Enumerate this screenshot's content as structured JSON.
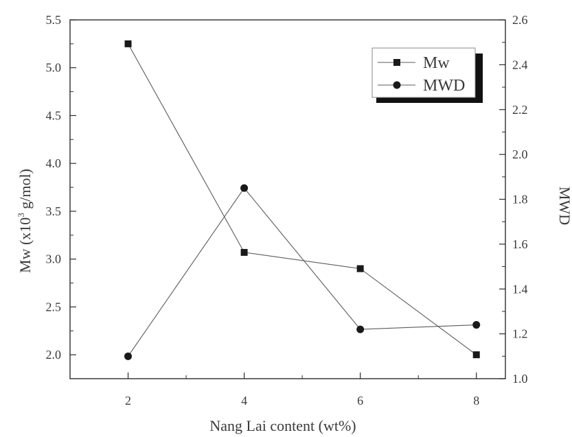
{
  "chart_data": {
    "type": "line",
    "title": "",
    "xlabel": "Nang Lai content (wt%)",
    "ylabel": {
      "main": "Mw (x10",
      "sup": "3",
      "rest": " g/mol)"
    },
    "y2label": "MWD",
    "xlim": [
      1,
      8.5
    ],
    "ylim": [
      1.75,
      5.5
    ],
    "y2lim": [
      1.0,
      2.6
    ],
    "x_ticks": [
      2,
      4,
      6,
      8
    ],
    "x_tick_labels": [
      "2",
      "4",
      "6",
      "8"
    ],
    "y_ticks": [
      2.0,
      2.5,
      3.0,
      3.5,
      4.0,
      4.5,
      5.0,
      5.5
    ],
    "y_tick_labels": [
      "2.0",
      "2.5",
      "3.0",
      "3.5",
      "4.0",
      "4.5",
      "5.0",
      "5.5"
    ],
    "y2_ticks": [
      1.0,
      1.2,
      1.4,
      1.6,
      1.8,
      2.0,
      2.2,
      2.4,
      2.6
    ],
    "y2_tick_labels": [
      "1.0",
      "1.2",
      "1.4",
      "1.6",
      "1.8",
      "2.0",
      "2.2",
      "2.4",
      "2.6"
    ],
    "x": [
      2,
      4,
      6,
      8
    ],
    "series": [
      {
        "name": "Mw",
        "axis": "left",
        "marker": "square",
        "values": [
          5.25,
          3.07,
          2.9,
          2.0
        ]
      },
      {
        "name": "MWD",
        "axis": "right",
        "marker": "circle",
        "values": [
          1.1,
          1.85,
          1.22,
          1.24
        ]
      }
    ],
    "grid": false,
    "legend": "top-right",
    "colors": {
      "line": "#5a5a5a",
      "marker": "#1a1a1a",
      "axis": "#2a2a2a",
      "text": "#3a3a3a"
    }
  }
}
